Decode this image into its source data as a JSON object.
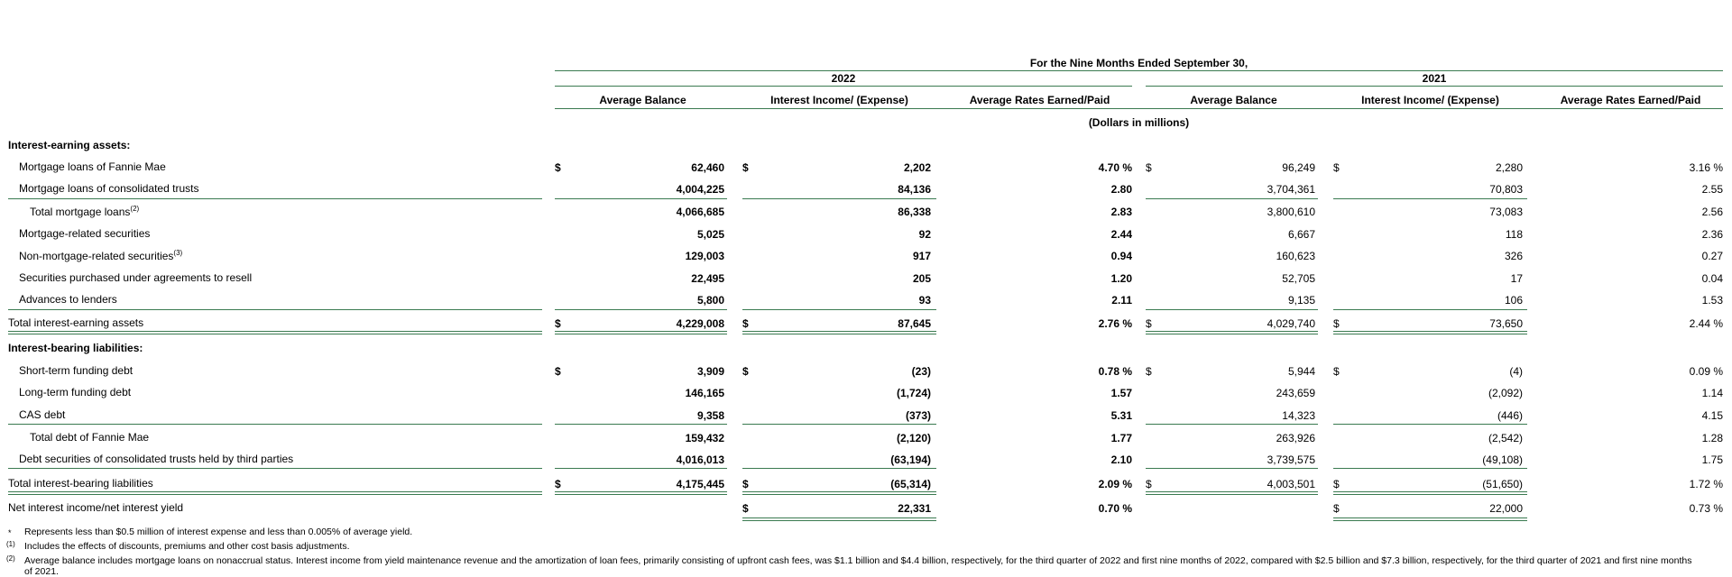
{
  "header": {
    "period": "For the Nine Months Ended September 30,",
    "year_2022": "2022",
    "year_2021": "2021",
    "col_avg_balance": "Average Balance",
    "col_interest": "Interest Income/ (Expense)",
    "col_rates": "Average Rates Earned/Paid",
    "units": "(Dollars in millions)"
  },
  "sections": {
    "assets": "Interest-earning assets:",
    "liabilities": "Interest-bearing liabilities:"
  },
  "rows": [
    {
      "label": "Mortgage loans of Fannie Mae",
      "sup": "",
      "a22": "62,460",
      "i22": "2,202",
      "r22": "4.70 %",
      "a21": "96,249",
      "i21": "2,280",
      "r21": "3.16 %"
    },
    {
      "label": "Mortgage loans of consolidated trusts",
      "sup": "",
      "a22": "4,004,225",
      "i22": "84,136",
      "r22": "2.80",
      "a21": "3,704,361",
      "i21": "70,803",
      "r21": "2.55"
    },
    {
      "label": "Total mortgage loans",
      "sup": "(2)",
      "a22": "4,066,685",
      "i22": "86,338",
      "r22": "2.83",
      "a21": "3,800,610",
      "i21": "73,083",
      "r21": "2.56"
    },
    {
      "label": "Mortgage-related securities",
      "sup": "",
      "a22": "5,025",
      "i22": "92",
      "r22": "2.44",
      "a21": "6,667",
      "i21": "118",
      "r21": "2.36"
    },
    {
      "label": "Non-mortgage-related securities",
      "sup": "(3)",
      "a22": "129,003",
      "i22": "917",
      "r22": "0.94",
      "a21": "160,623",
      "i21": "326",
      "r21": "0.27"
    },
    {
      "label": "Securities purchased under agreements to resell",
      "sup": "",
      "a22": "22,495",
      "i22": "205",
      "r22": "1.20",
      "a21": "52,705",
      "i21": "17",
      "r21": "0.04"
    },
    {
      "label": "Advances to lenders",
      "sup": "",
      "a22": "5,800",
      "i22": "93",
      "r22": "2.11",
      "a21": "9,135",
      "i21": "106",
      "r21": "1.53"
    },
    {
      "label": "Total interest-earning assets",
      "sup": "",
      "a22": "4,229,008",
      "i22": "87,645",
      "r22": "2.76 %",
      "a21": "4,029,740",
      "i21": "73,650",
      "r21": "2.44 %"
    },
    {
      "label": "Short-term funding debt",
      "sup": "",
      "a22": "3,909",
      "i22": "(23)",
      "r22": "0.78 %",
      "a21": "5,944",
      "i21": "(4)",
      "r21": "0.09 %"
    },
    {
      "label": "Long-term funding debt",
      "sup": "",
      "a22": "146,165",
      "i22": "(1,724)",
      "r22": "1.57",
      "a21": "243,659",
      "i21": "(2,092)",
      "r21": "1.14"
    },
    {
      "label": "CAS debt",
      "sup": "",
      "a22": "9,358",
      "i22": "(373)",
      "r22": "5.31",
      "a21": "14,323",
      "i21": "(446)",
      "r21": "4.15"
    },
    {
      "label": "Total debt of Fannie Mae",
      "sup": "",
      "a22": "159,432",
      "i22": "(2,120)",
      "r22": "1.77",
      "a21": "263,926",
      "i21": "(2,542)",
      "r21": "1.28"
    },
    {
      "label": "Debt securities of consolidated trusts held by third parties",
      "sup": "",
      "a22": "4,016,013",
      "i22": "(63,194)",
      "r22": "2.10",
      "a21": "3,739,575",
      "i21": "(49,108)",
      "r21": "1.75"
    },
    {
      "label": "Total interest-bearing liabilities",
      "sup": "",
      "a22": "4,175,445",
      "i22": "(65,314)",
      "r22": "2.09 %",
      "a21": "4,003,501",
      "i21": "(51,650)",
      "r21": "1.72 %"
    },
    {
      "label": "Net interest income/net interest yield",
      "sup": "",
      "a22": "",
      "i22": "22,331",
      "r22": "0.70 %",
      "a21": "",
      "i21": "22,000",
      "r21": "0.73 %"
    }
  ],
  "currency": "$",
  "footnotes": [
    {
      "mark": "*",
      "text": "Represents less than $0.5 million of interest expense and less than 0.005% of average yield."
    },
    {
      "mark": "(1)",
      "text": "Includes the effects of discounts, premiums and other cost basis adjustments."
    },
    {
      "mark": "(2)",
      "text": "Average balance includes mortgage loans on nonaccrual status. Interest income from yield maintenance revenue and the amortization of loan fees, primarily consisting of upfront cash fees, was $1.1 billion and $4.4 billion, respectively, for the third quarter of 2022 and first nine months of 2022, compared with $2.5 billion and $7.3 billion, respectively, for the third quarter of 2021 and first nine months"
    },
    {
      "mark": "",
      "text": "of 2021."
    }
  ]
}
